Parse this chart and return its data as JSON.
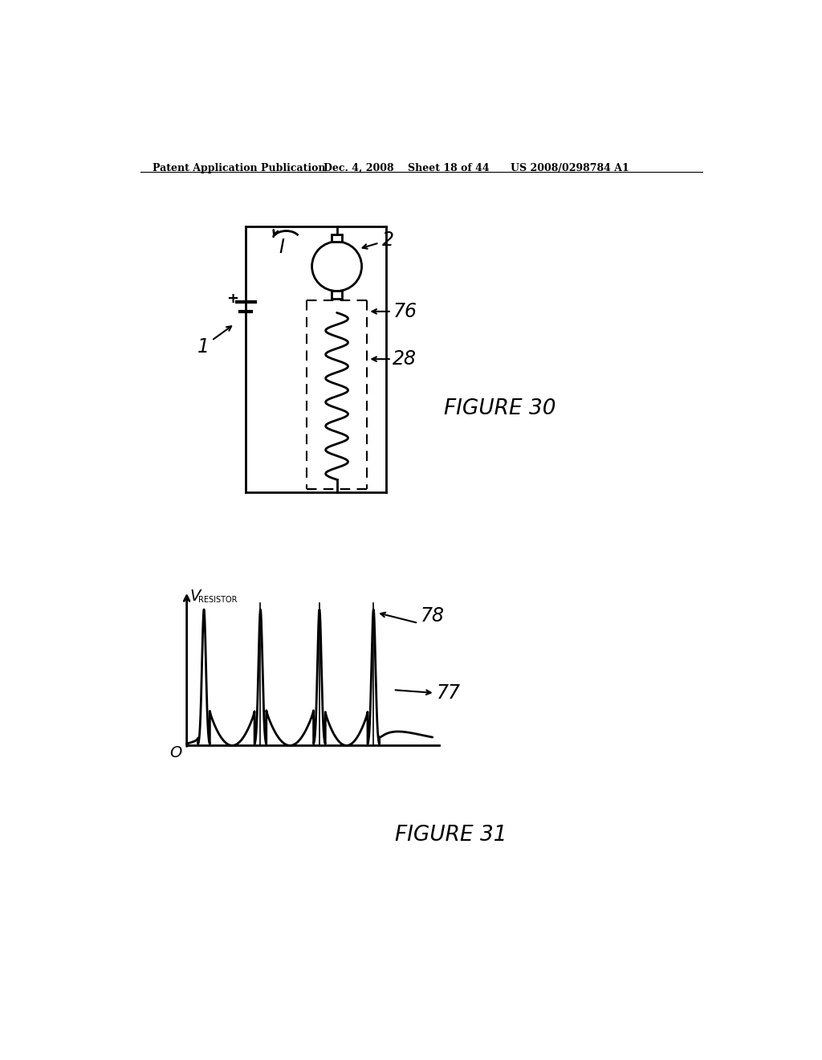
{
  "bg_color": "#ffffff",
  "header_text": "Patent Application Publication",
  "header_date": "Dec. 4, 2008",
  "header_sheet": "Sheet 18 of 44",
  "header_patent": "US 2008/0298784 A1",
  "fig30_label": "FIGURE 30",
  "fig31_label": "FIGURE 31",
  "label_1": "1",
  "label_2": "2",
  "label_I": "I",
  "label_76": "76",
  "label_28": "28",
  "label_78": "78",
  "label_77": "77",
  "label_0_fig31": "O",
  "lw": 2.0
}
